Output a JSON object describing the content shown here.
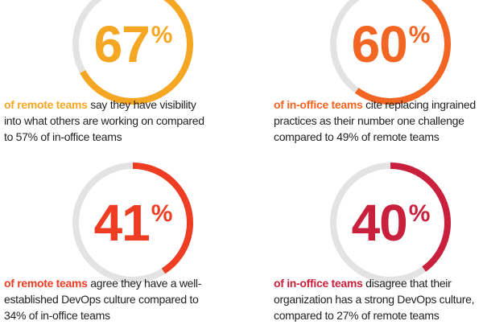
{
  "chart_data": {
    "type": "donut",
    "unit": "%",
    "items": [
      {
        "value": 67,
        "unit": "%",
        "color": "#f5a623",
        "highlight": "of remote teams",
        "text": " say they have visibility into what others are working on compared to 57% of in-office teams"
      },
      {
        "value": 60,
        "unit": "%",
        "color": "#f26522",
        "highlight": "of in-office teams",
        "text": " cite replacing ingrained practices as their number one challenge compared to 49% of remote teams"
      },
      {
        "value": 41,
        "unit": "%",
        "color": "#ee3d23",
        "highlight": "of remote teams",
        "text": " agree they have a well-established DevOps culture compared to 34% of in-office teams"
      },
      {
        "value": 40,
        "unit": "%",
        "color": "#c8203d",
        "highlight": "of in-office teams",
        "text": " disagree that their organization has a strong DevOps culture, compared to 27% of remote teams"
      }
    ],
    "track_color": "#e3e3e3"
  }
}
